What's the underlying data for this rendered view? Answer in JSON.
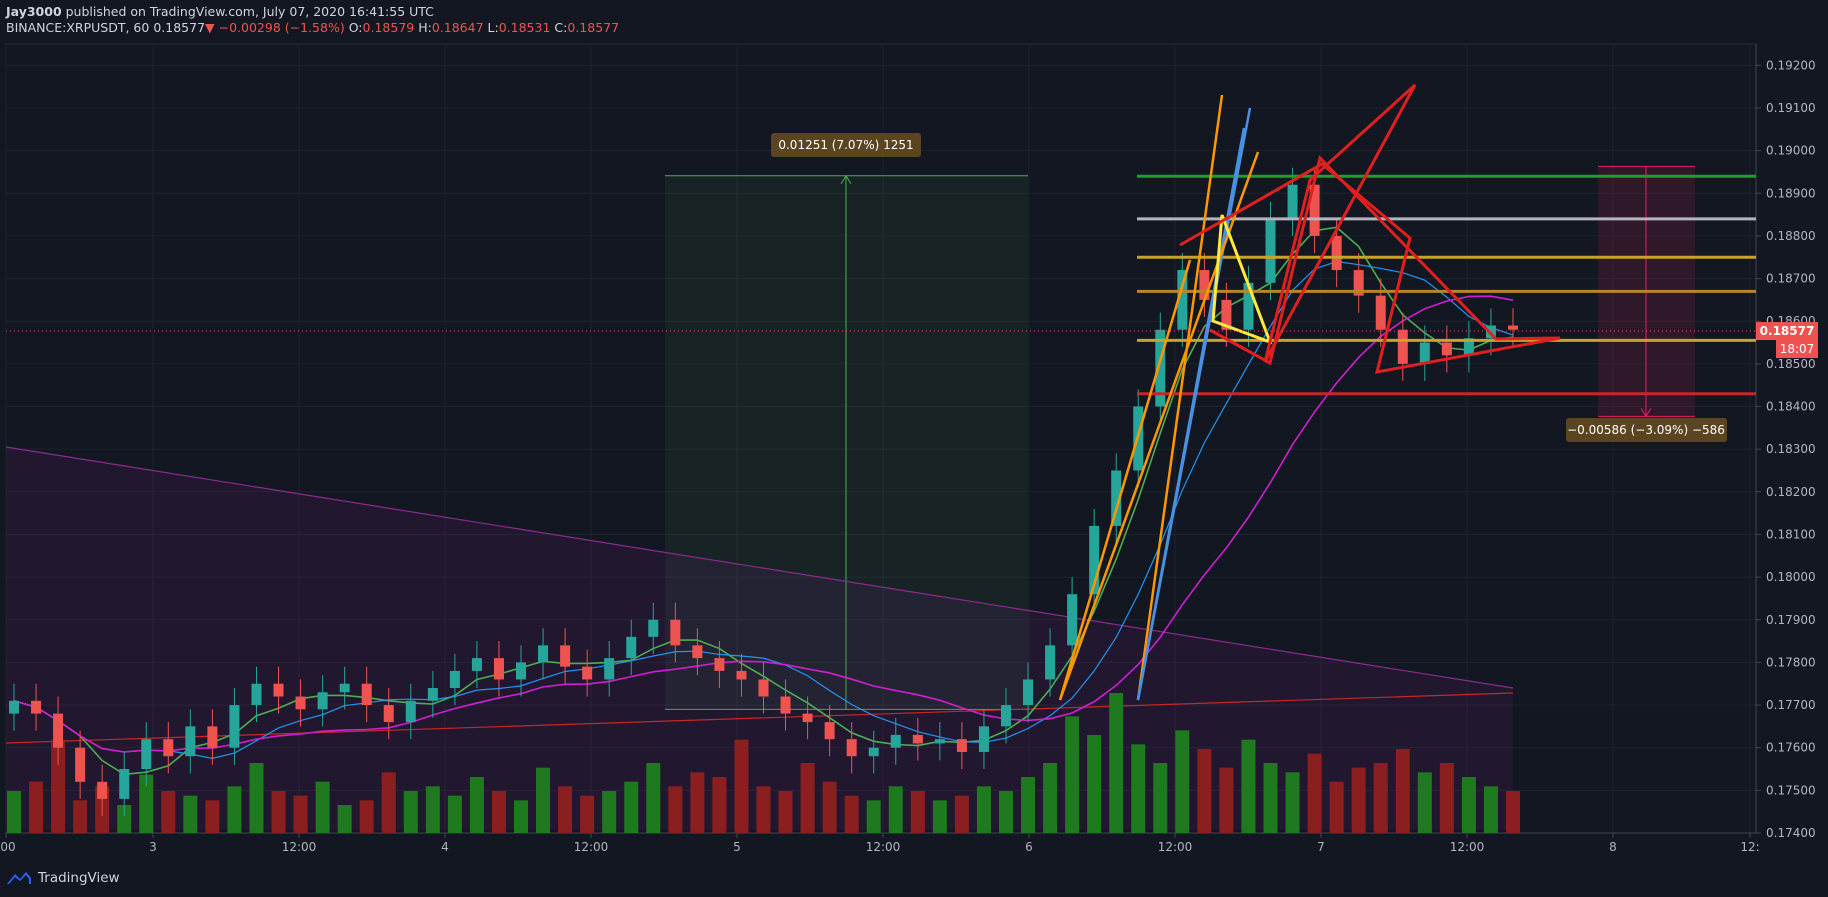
{
  "header": {
    "publisher": "Jay3000",
    "published_text": " published on TradingView.com, July 07, 2020 16:41:55 UTC",
    "symbol_line": "BINANCE:XRPUSDT, 60",
    "close": "0.18577",
    "change": "▼ −0.00298 (−1.58%)",
    "o_label": "O:",
    "o": "0.18579",
    "h_label": "H:",
    "h": "0.18647",
    "l_label": "L:",
    "l": "0.18531",
    "c_label": "C:",
    "c": "0.18577"
  },
  "footer": {
    "brand": "TradingView",
    "logo_icon": "tradingview-logo-icon"
  },
  "chart_data": {
    "type": "candlestick",
    "symbol": "XRPUSDT",
    "exchange": "BINANCE",
    "interval": "60",
    "ylim": [
      0.174,
      0.1925
    ],
    "y_ticks": [
      "0.19200",
      "0.19100",
      "0.19000",
      "0.18900",
      "0.18800",
      "0.18700",
      "0.18600",
      "0.18500",
      "0.18400",
      "0.18300",
      "0.18200",
      "0.18100",
      "0.18000",
      "0.17900",
      "0.17800",
      "0.17700",
      "0.17600",
      "0.17500",
      "0.17400"
    ],
    "x_ticks": [
      ":00",
      "3",
      "12:00",
      "4",
      "12:00",
      "5",
      "12:00",
      "6",
      "12:00",
      "7",
      "12:00",
      "8",
      "12:"
    ],
    "last_price": {
      "value": 0.18577,
      "label": "0.18577",
      "countdown": "18:07",
      "color": "#ef5350"
    },
    "price_series": [
      0.1771,
      0.1768,
      0.176,
      0.1752,
      0.1748,
      0.1755,
      0.1762,
      0.1758,
      0.1765,
      0.176,
      0.177,
      0.1775,
      0.1772,
      0.1769,
      0.1773,
      0.1775,
      0.177,
      0.1766,
      0.1771,
      0.1774,
      0.1778,
      0.1781,
      0.1776,
      0.178,
      0.1784,
      0.1779,
      0.1776,
      0.1781,
      0.1786,
      0.179,
      0.1784,
      0.1781,
      0.1778,
      0.1776,
      0.1772,
      0.1768,
      0.1766,
      0.1762,
      0.1758,
      0.176,
      0.1763,
      0.1761,
      0.1762,
      0.1759,
      0.1765,
      0.177,
      0.1776,
      0.1784,
      0.1796,
      0.1812,
      0.1825,
      0.184,
      0.1858,
      0.1872,
      0.1865,
      0.1858,
      0.1869,
      0.1884,
      0.1892,
      0.188,
      0.1872,
      0.1866,
      0.1858,
      0.185,
      0.1855,
      0.1852,
      0.1856,
      0.1859,
      0.1858
    ],
    "volume_series": [
      18,
      22,
      40,
      14,
      20,
      12,
      25,
      18,
      16,
      14,
      20,
      30,
      18,
      16,
      22,
      12,
      14,
      26,
      18,
      20,
      16,
      24,
      18,
      14,
      28,
      20,
      16,
      18,
      22,
      30,
      20,
      26,
      24,
      40,
      20,
      18,
      30,
      22,
      16,
      14,
      20,
      18,
      14,
      16,
      20,
      18,
      24,
      30,
      50,
      42,
      60,
      38,
      30,
      44,
      36,
      28,
      40,
      30,
      26,
      34,
      22,
      28,
      30,
      36,
      26,
      30,
      24,
      20,
      18
    ],
    "levels": [
      {
        "value": 0.1894,
        "color": "#1e9e2b"
      },
      {
        "value": 0.1884,
        "color": "#b2b5be"
      },
      {
        "value": 0.1875,
        "color": "#c9a227"
      },
      {
        "value": 0.1867,
        "color": "#b8862a"
      },
      {
        "value": 0.18555,
        "color": "#c9a227"
      },
      {
        "value": 0.1843,
        "color": "#c62828"
      }
    ],
    "measure_up": {
      "label": "0.01251 (7.07%) 1251",
      "from": 0.1769,
      "to": 0.18941,
      "color": "#4caf50"
    },
    "measure_down": {
      "label": "−0.00586 (−3.09%) −586",
      "from": 0.18963,
      "to": 0.18377,
      "color": "#e91e63"
    },
    "colors": {
      "up": "#26a69a",
      "down": "#ef5350",
      "vol_up": "#1f7a1f",
      "vol_down": "#8b1f1f",
      "ma_green": "#4caf50",
      "ma_blue": "#2196f3",
      "ma_magenta": "#d01fd0",
      "ma_red": "#c62828"
    }
  }
}
